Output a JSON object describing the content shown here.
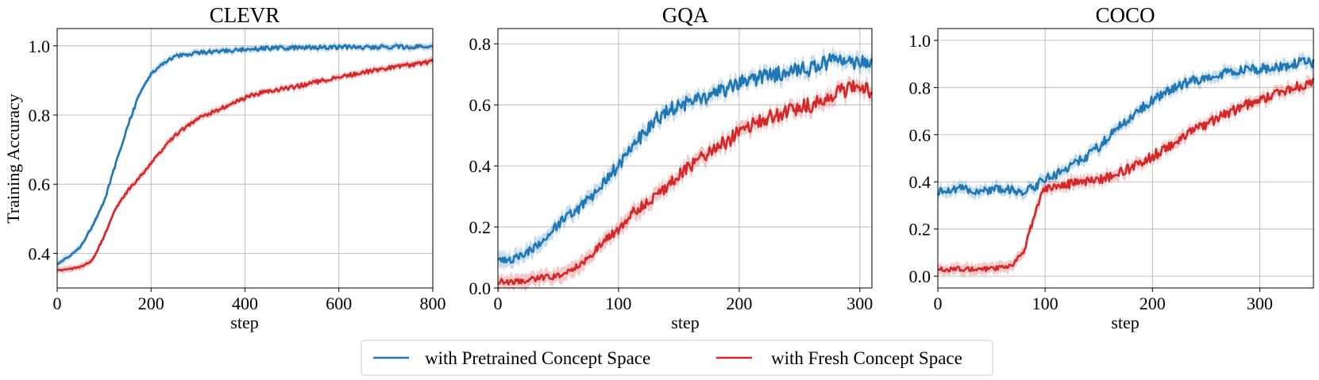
{
  "figure": {
    "ylabel": "Training Accuracy",
    "legend": {
      "placement": "bottom-center",
      "entries": [
        {
          "label": "with Pretrained Concept Space",
          "color": "#1f77b4"
        },
        {
          "label": "with Fresh Concept Space",
          "color": "#d62728"
        }
      ]
    }
  },
  "chart_data": [
    {
      "type": "line",
      "title": "CLEVR",
      "xlabel": "step",
      "ylabel": "Training Accuracy",
      "xlim": [
        0,
        800
      ],
      "ylim": [
        0.3,
        1.05
      ],
      "xticks": [
        0,
        200,
        400,
        600,
        800
      ],
      "yticks": [
        0.4,
        0.6,
        0.8,
        1.0
      ],
      "xtick_labels": [
        "0",
        "200",
        "400",
        "600",
        "800"
      ],
      "ytick_labels": [
        "0.4",
        "0.6",
        "0.8",
        "1.0"
      ],
      "grid": true,
      "series": [
        {
          "name": "with Pretrained Concept Space",
          "color": "#1f77b4",
          "x": [
            0,
            25,
            50,
            75,
            100,
            125,
            150,
            175,
            200,
            225,
            250,
            300,
            350,
            400,
            450,
            500,
            600,
            700,
            800
          ],
          "y": [
            0.37,
            0.39,
            0.42,
            0.48,
            0.55,
            0.66,
            0.77,
            0.86,
            0.92,
            0.95,
            0.97,
            0.98,
            0.985,
            0.99,
            0.993,
            0.995,
            0.996,
            0.997,
            0.997
          ]
        },
        {
          "name": "with Fresh Concept Space",
          "color": "#d62728",
          "x": [
            0,
            25,
            50,
            75,
            100,
            125,
            150,
            175,
            200,
            250,
            300,
            350,
            400,
            450,
            500,
            550,
            600,
            700,
            800
          ],
          "y": [
            0.35,
            0.355,
            0.36,
            0.38,
            0.45,
            0.53,
            0.58,
            0.62,
            0.66,
            0.74,
            0.79,
            0.82,
            0.85,
            0.87,
            0.88,
            0.895,
            0.91,
            0.935,
            0.955
          ]
        }
      ]
    },
    {
      "type": "line",
      "title": "GQA",
      "xlabel": "step",
      "xlim": [
        0,
        310
      ],
      "ylim": [
        0.0,
        0.85
      ],
      "xticks": [
        0,
        100,
        200,
        300
      ],
      "yticks": [
        0.0,
        0.2,
        0.4,
        0.6,
        0.8
      ],
      "xtick_labels": [
        "0",
        "100",
        "200",
        "300"
      ],
      "ytick_labels": [
        "0.0",
        "0.2",
        "0.4",
        "0.6",
        "0.8"
      ],
      "grid": true,
      "series": [
        {
          "name": "with Pretrained Concept Space",
          "color": "#1f77b4",
          "x": [
            0,
            10,
            20,
            30,
            40,
            50,
            60,
            70,
            80,
            90,
            100,
            110,
            120,
            130,
            140,
            150,
            160,
            170,
            180,
            190,
            200,
            220,
            240,
            260,
            280,
            300,
            310
          ],
          "y": [
            0.09,
            0.09,
            0.11,
            0.13,
            0.17,
            0.21,
            0.24,
            0.27,
            0.31,
            0.36,
            0.4,
            0.46,
            0.5,
            0.55,
            0.58,
            0.6,
            0.61,
            0.62,
            0.64,
            0.65,
            0.67,
            0.69,
            0.71,
            0.72,
            0.75,
            0.74,
            0.73
          ]
        },
        {
          "name": "with Fresh Concept Space",
          "color": "#d62728",
          "x": [
            0,
            10,
            20,
            30,
            40,
            50,
            60,
            70,
            80,
            90,
            100,
            110,
            120,
            130,
            140,
            150,
            160,
            170,
            180,
            190,
            200,
            220,
            240,
            260,
            280,
            300,
            310
          ],
          "y": [
            0.02,
            0.02,
            0.02,
            0.03,
            0.035,
            0.04,
            0.06,
            0.08,
            0.12,
            0.16,
            0.19,
            0.24,
            0.27,
            0.3,
            0.33,
            0.37,
            0.4,
            0.43,
            0.46,
            0.48,
            0.51,
            0.55,
            0.58,
            0.6,
            0.64,
            0.66,
            0.64
          ]
        }
      ]
    },
    {
      "type": "line",
      "title": "COCO",
      "xlabel": "step",
      "xlim": [
        0,
        350
      ],
      "ylim": [
        -0.05,
        1.05
      ],
      "xticks": [
        0,
        100,
        200,
        300
      ],
      "yticks": [
        0.0,
        0.2,
        0.4,
        0.6,
        0.8,
        1.0
      ],
      "xtick_labels": [
        "0",
        "100",
        "200",
        "300"
      ],
      "ytick_labels": [
        "0.0",
        "0.2",
        "0.4",
        "0.6",
        "0.8",
        "1.0"
      ],
      "grid": true,
      "series": [
        {
          "name": "with Pretrained Concept Space",
          "color": "#1f77b4",
          "x": [
            0,
            20,
            40,
            60,
            80,
            90,
            100,
            120,
            140,
            160,
            180,
            200,
            220,
            240,
            260,
            280,
            300,
            320,
            340,
            350
          ],
          "y": [
            0.36,
            0.37,
            0.36,
            0.37,
            0.36,
            0.38,
            0.41,
            0.45,
            0.51,
            0.59,
            0.68,
            0.75,
            0.8,
            0.83,
            0.85,
            0.87,
            0.88,
            0.89,
            0.91,
            0.9
          ]
        },
        {
          "name": "with Fresh Concept Space",
          "color": "#d62728",
          "x": [
            0,
            20,
            40,
            60,
            70,
            80,
            85,
            90,
            95,
            100,
            120,
            140,
            160,
            180,
            200,
            220,
            240,
            260,
            280,
            300,
            320,
            340,
            350
          ],
          "y": [
            0.03,
            0.03,
            0.03,
            0.035,
            0.05,
            0.1,
            0.18,
            0.26,
            0.33,
            0.37,
            0.39,
            0.4,
            0.42,
            0.46,
            0.51,
            0.56,
            0.62,
            0.67,
            0.71,
            0.75,
            0.78,
            0.81,
            0.82
          ]
        }
      ]
    }
  ]
}
